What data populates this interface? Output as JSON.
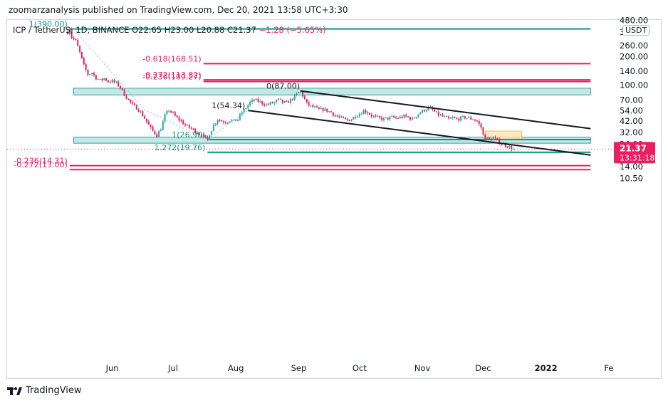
{
  "header": {
    "text": "zoomarzanalysis published on TradingView.com, Dec 20, 2021 13:58 UTC+3:30"
  },
  "legend": {
    "symbol": "ICP / TetherUS, 1D, BINANCE",
    "open": "O22.65",
    "high": "H23.00",
    "low": "L20.88",
    "close": "C21.37",
    "change": "−1.28 (−5.65%)"
  },
  "currency": "USDT",
  "footer": {
    "brand": "TradingView"
  },
  "price_badge": {
    "price": "21.37",
    "countdown": "13:31:18",
    "color": "#e91e63"
  },
  "chart_data": {
    "type": "candlestick",
    "y_scale": "log",
    "y_ticks": [
      {
        "v": 480,
        "label": "480.00"
      },
      {
        "v": 360,
        "label": "360.00"
      },
      {
        "v": 260,
        "label": "260.00"
      },
      {
        "v": 200,
        "label": "200.00"
      },
      {
        "v": 140,
        "label": "140.00"
      },
      {
        "v": 100,
        "label": "100.00"
      },
      {
        "v": 70,
        "label": "70.00"
      },
      {
        "v": 54,
        "label": "54.00"
      },
      {
        "v": 42,
        "label": "42.00"
      },
      {
        "v": 32,
        "label": "32.00"
      },
      {
        "v": 24,
        "label": "24.00"
      },
      {
        "v": 14,
        "label": "14.00"
      },
      {
        "v": 10.5,
        "label": "10.50"
      }
    ],
    "x_ticks": [
      {
        "d": 22,
        "label": "Jun",
        "bold": false
      },
      {
        "d": 52,
        "label": "Jul",
        "bold": false
      },
      {
        "d": 83,
        "label": "Aug",
        "bold": false
      },
      {
        "d": 114,
        "label": "Sep",
        "bold": false
      },
      {
        "d": 144,
        "label": "Oct",
        "bold": false
      },
      {
        "d": 175,
        "label": "Nov",
        "bold": false
      },
      {
        "d": 205,
        "label": "Dec",
        "bold": false
      },
      {
        "d": 236,
        "label": "2022",
        "bold": true
      },
      {
        "d": 267,
        "label": "Fe",
        "bold": false
      }
    ],
    "price_path": [
      [
        0,
        360
      ],
      [
        1,
        400
      ],
      [
        2,
        320
      ],
      [
        4,
        290
      ],
      [
        6,
        220
      ],
      [
        8,
        160
      ],
      [
        10,
        130
      ],
      [
        12,
        135
      ],
      [
        14,
        120
      ],
      [
        16,
        112
      ],
      [
        18,
        118
      ],
      [
        20,
        110
      ],
      [
        22,
        110
      ],
      [
        24,
        105
      ],
      [
        26,
        95
      ],
      [
        28,
        80
      ],
      [
        30,
        70
      ],
      [
        32,
        62
      ],
      [
        34,
        58
      ],
      [
        36,
        52
      ],
      [
        38,
        45
      ],
      [
        40,
        38
      ],
      [
        42,
        33
      ],
      [
        44,
        30
      ],
      [
        46,
        35
      ],
      [
        48,
        48
      ],
      [
        50,
        55
      ],
      [
        52,
        50
      ],
      [
        54,
        45
      ],
      [
        56,
        42
      ],
      [
        58,
        38
      ],
      [
        60,
        36
      ],
      [
        62,
        34
      ],
      [
        63,
        33
      ],
      [
        64,
        32
      ],
      [
        66,
        30
      ],
      [
        68,
        27.5
      ],
      [
        69,
        27
      ],
      [
        70,
        31
      ],
      [
        72,
        38
      ],
      [
        74,
        44
      ],
      [
        76,
        42
      ],
      [
        78,
        41
      ],
      [
        80,
        43
      ],
      [
        82,
        42
      ],
      [
        84,
        44
      ],
      [
        86,
        52
      ],
      [
        88,
        58
      ],
      [
        90,
        66
      ],
      [
        92,
        70
      ],
      [
        94,
        68
      ],
      [
        96,
        65
      ],
      [
        98,
        62
      ],
      [
        100,
        64
      ],
      [
        102,
        66
      ],
      [
        104,
        70
      ],
      [
        106,
        66
      ],
      [
        108,
        65
      ],
      [
        110,
        70
      ],
      [
        112,
        76
      ],
      [
        114,
        84
      ],
      [
        115,
        87
      ],
      [
        116,
        78
      ],
      [
        118,
        64
      ],
      [
        120,
        60
      ],
      [
        122,
        58
      ],
      [
        124,
        55
      ],
      [
        126,
        56
      ],
      [
        128,
        54
      ],
      [
        130,
        52
      ],
      [
        132,
        48
      ],
      [
        134,
        46
      ],
      [
        136,
        44
      ],
      [
        138,
        43
      ],
      [
        140,
        44
      ],
      [
        142,
        48
      ],
      [
        144,
        50
      ],
      [
        146,
        54
      ],
      [
        148,
        52
      ],
      [
        150,
        48
      ],
      [
        152,
        46
      ],
      [
        154,
        45
      ],
      [
        156,
        44
      ],
      [
        158,
        45
      ],
      [
        160,
        46
      ],
      [
        162,
        45
      ],
      [
        164,
        46
      ],
      [
        166,
        47
      ],
      [
        168,
        46
      ],
      [
        170,
        44
      ],
      [
        172,
        48
      ],
      [
        174,
        52
      ],
      [
        176,
        55
      ],
      [
        178,
        58
      ],
      [
        180,
        55
      ],
      [
        182,
        50
      ],
      [
        184,
        48
      ],
      [
        186,
        46
      ],
      [
        188,
        44
      ],
      [
        190,
        45
      ],
      [
        192,
        44
      ],
      [
        194,
        45
      ],
      [
        196,
        46
      ],
      [
        198,
        45
      ],
      [
        200,
        44
      ],
      [
        202,
        42
      ],
      [
        204,
        36
      ],
      [
        205,
        30
      ],
      [
        206,
        28
      ],
      [
        208,
        27
      ],
      [
        210,
        28
      ],
      [
        212,
        26
      ],
      [
        214,
        24.5
      ],
      [
        216,
        23.5
      ],
      [
        218,
        22.5
      ],
      [
        220,
        21.37
      ]
    ],
    "horizontal_levels": [
      {
        "label": "1(390.00)",
        "v": 390,
        "d1": 1,
        "d2": 258,
        "color": "#089981"
      },
      {
        "label": "-0.618(168.51)",
        "v": 168.51,
        "d1": 67,
        "d2": 258,
        "color": "#e91e63"
      },
      {
        "label": "-0.272(113.82)",
        "v": 113.82,
        "d1": 67,
        "d2": 258,
        "color": "#e91e63"
      },
      {
        "label": "-0.236(109.27)",
        "v": 109.27,
        "d1": 67,
        "d2": 258,
        "color": "#e91e63"
      },
      {
        "label": "0(87.00)",
        "v": 87,
        "d1": 116,
        "d2": 116,
        "color": "#131722"
      },
      {
        "label": "1(54.34)",
        "v": 54.34,
        "d1": 89,
        "d2": 89,
        "color": "#131722"
      },
      {
        "label": "1(26.90)",
        "v": 26.9,
        "d1": 69,
        "d2": 258,
        "color": "#089981"
      },
      {
        "label": "1.272(19.76)",
        "v": 19.76,
        "d1": 69,
        "d2": 258,
        "color": "#089981"
      },
      {
        "label": "-0.236(14.31)",
        "v": 14.31,
        "d1": 1,
        "d2": 258,
        "color": "#e91e63"
      },
      {
        "label": "-0.272(13.00)",
        "v": 13.0,
        "d1": 1,
        "d2": 258,
        "color": "#e91e63"
      }
    ],
    "zones": [
      {
        "name": "resistance-zone",
        "d1": 3,
        "d2": 258,
        "top": 93,
        "bottom": 79,
        "fill": "#b2dfdb",
        "stroke": "#26a69a"
      },
      {
        "name": "support-zone",
        "d1": 3,
        "d2": 258,
        "top": 28.5,
        "bottom": 24.6,
        "fill": "#b2dfdb",
        "stroke": "#26a69a"
      },
      {
        "name": "target-box",
        "d1": 206,
        "d2": 224,
        "top": 33,
        "bottom": 27.2,
        "fill": "#ffe0b2",
        "stroke": "#f0c060"
      }
    ],
    "channel_lines": [
      {
        "d1": 115,
        "v1": 87,
        "d2": 258,
        "v2": 35
      },
      {
        "d1": 89,
        "v1": 54.34,
        "d2": 258,
        "v2": 18.5
      }
    ],
    "dotted_line": {
      "d1": 3,
      "v1": 390,
      "d2": 38,
      "v2": 55,
      "d3": 69,
      "v3": 26.9,
      "d4": 89,
      "v4": 54.34,
      "color": "#8fd1c6"
    },
    "current_price": 21.37
  }
}
